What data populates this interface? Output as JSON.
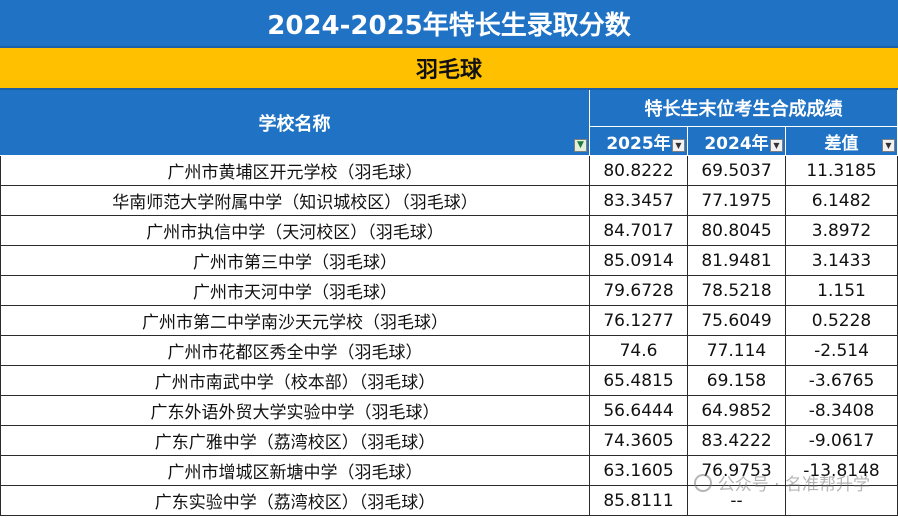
{
  "title": "2024-2025年特长生录取分数",
  "sport": "羽毛球",
  "headers": {
    "school": "学校名称",
    "group": "特长生末位考生合成成绩",
    "y2025": "2025年",
    "y2024": "2024年",
    "diff": "差值"
  },
  "rows": [
    {
      "school": "广州市黄埔区开元学校（羽毛球）",
      "y2025": "80.8222",
      "y2024": "69.5037",
      "diff": "11.3185"
    },
    {
      "school": "华南师范大学附属中学（知识城校区）（羽毛球）",
      "y2025": "83.3457",
      "y2024": "77.1975",
      "diff": "6.1482"
    },
    {
      "school": "广州市执信中学（天河校区）（羽毛球）",
      "y2025": "84.7017",
      "y2024": "80.8045",
      "diff": "3.8972"
    },
    {
      "school": "广州市第三中学（羽毛球）",
      "y2025": "85.0914",
      "y2024": "81.9481",
      "diff": "3.1433"
    },
    {
      "school": "广州市天河中学（羽毛球）",
      "y2025": "79.6728",
      "y2024": "78.5218",
      "diff": "1.151"
    },
    {
      "school": "广州市第二中学南沙天元学校（羽毛球）",
      "y2025": "76.1277",
      "y2024": "75.6049",
      "diff": "0.5228"
    },
    {
      "school": "广州市花都区秀全中学（羽毛球）",
      "y2025": "74.6",
      "y2024": "77.114",
      "diff": "-2.514"
    },
    {
      "school": "广州市南武中学（校本部）（羽毛球）",
      "y2025": "65.4815",
      "y2024": "69.158",
      "diff": "-3.6765"
    },
    {
      "school": "广东外语外贸大学实验中学（羽毛球）",
      "y2025": "56.6444",
      "y2024": "64.9852",
      "diff": "-8.3408"
    },
    {
      "school": "广东广雅中学（荔湾校区）（羽毛球）",
      "y2025": "74.3605",
      "y2024": "83.4222",
      "diff": "-9.0617"
    },
    {
      "school": "广州市增城区新塘中学（羽毛球）",
      "y2025": "63.1605",
      "y2024": "76.9753",
      "diff": "-13.8148"
    },
    {
      "school": "广东实验中学（荔湾校区）（羽毛球）",
      "y2025": "85.8111",
      "y2024": "--",
      "diff": ""
    }
  ],
  "watermark": "公众号 · 名准帮升学",
  "icons": {
    "filter": "filter-dropdown-icon",
    "watermark": "wechat-logo-icon"
  }
}
